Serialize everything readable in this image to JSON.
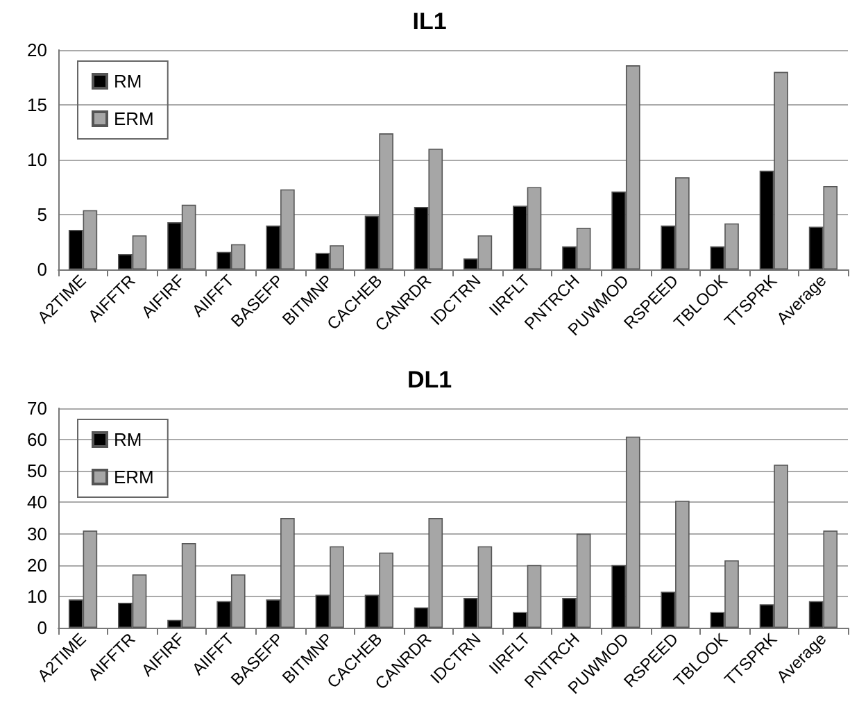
{
  "chart_data": [
    {
      "type": "bar",
      "title": "IL1",
      "categories": [
        "A2TIME",
        "AIFFTR",
        "AIFIRF",
        "AIIFFT",
        "BASEFP",
        "BITMNP",
        "CACHEB",
        "CANRDR",
        "IDCTRN",
        "IIRFLT",
        "PNTRCH",
        "PUWMOD",
        "RSPEED",
        "TBLOOK",
        "TTSPRK",
        "Average"
      ],
      "series": [
        {
          "name": "RM",
          "color": "#000000",
          "values": [
            3.6,
            1.4,
            4.3,
            1.6,
            4.0,
            1.5,
            4.9,
            5.7,
            1.0,
            5.8,
            2.1,
            7.1,
            4.0,
            2.1,
            9.0,
            3.9
          ]
        },
        {
          "name": "ERM",
          "color": "#a6a6a6",
          "values": [
            5.4,
            3.1,
            5.9,
            2.3,
            7.3,
            2.2,
            12.4,
            11.0,
            3.1,
            7.5,
            3.8,
            18.6,
            8.4,
            4.2,
            18.0,
            7.6
          ]
        }
      ],
      "ylim": [
        0,
        20
      ],
      "yticks": [
        0,
        5,
        10,
        15,
        20
      ],
      "grid": "y",
      "legend": "top left"
    },
    {
      "type": "bar",
      "title": "DL1",
      "categories": [
        "A2TIME",
        "AIFFTR",
        "AIFIRF",
        "AIIFFT",
        "BASEFP",
        "BITMNP",
        "CACHEB",
        "CANRDR",
        "IDCTRN",
        "IIRFLT",
        "PNTRCH",
        "PUWMOD",
        "RSPEED",
        "TBLOOK",
        "TTSPRK",
        "Average"
      ],
      "series": [
        {
          "name": "RM",
          "color": "#000000",
          "values": [
            9,
            8,
            2.5,
            8.5,
            9,
            10.5,
            10.5,
            6.5,
            9.5,
            5,
            9.5,
            20,
            11.5,
            5,
            7.5,
            8.5
          ]
        },
        {
          "name": "ERM",
          "color": "#a6a6a6",
          "values": [
            31,
            17,
            27,
            17,
            35,
            26,
            24,
            35,
            26,
            20,
            30,
            61,
            40.5,
            21.5,
            52,
            31
          ]
        }
      ],
      "ylim": [
        0,
        70
      ],
      "yticks": [
        0,
        10,
        20,
        30,
        40,
        50,
        60,
        70
      ],
      "grid": "y",
      "legend": "top left"
    }
  ]
}
